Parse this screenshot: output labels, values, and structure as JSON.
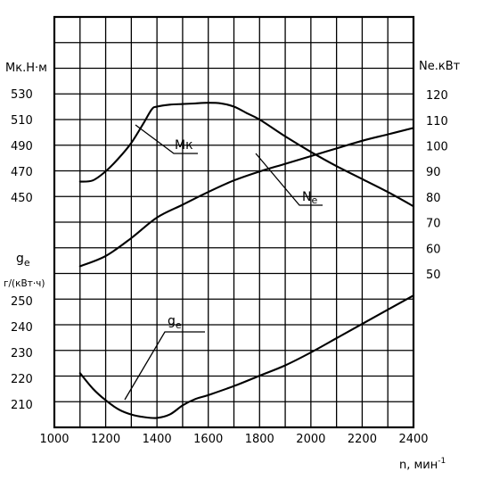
{
  "chart_data": {
    "type": "line",
    "x": {
      "label": "n, мин",
      "label_exp": "-1",
      "min": 1000,
      "max": 2400,
      "ticks": [
        1000,
        1200,
        1400,
        1600,
        1800,
        2000,
        2200,
        2400
      ]
    },
    "axes": {
      "mk": {
        "label": "Мк.Н·м",
        "ticks": [
          450,
          470,
          490,
          510,
          530
        ]
      },
      "ne": {
        "label": "Nе.кВт",
        "ticks": [
          50,
          60,
          70,
          80,
          90,
          100,
          110,
          120
        ]
      },
      "ge": {
        "label": "g",
        "label_sub": "е",
        "unit": "г/(кВт·ч)",
        "ticks": [
          210,
          220,
          230,
          240,
          250
        ]
      }
    },
    "series": [
      {
        "name": "Мк",
        "axis": "mk",
        "x": [
          1100,
          1150,
          1200,
          1250,
          1300,
          1350,
          1380,
          1400,
          1450,
          1500,
          1550,
          1600,
          1650,
          1700,
          1750,
          1800,
          1900,
          2000,
          2100,
          2200,
          2300,
          2400
        ],
        "values": [
          462,
          463,
          470,
          480,
          492,
          508,
          518,
          520,
          521.5,
          522,
          522.5,
          523,
          522.5,
          520,
          515,
          510,
          497,
          485,
          474,
          464,
          454,
          443
        ]
      },
      {
        "name": "Nе",
        "axis": "ne",
        "x": [
          1100,
          1200,
          1300,
          1400,
          1500,
          1600,
          1700,
          1800,
          1900,
          2000,
          2100,
          2200,
          2300,
          2400
        ],
        "values": [
          53,
          57,
          64,
          72,
          77,
          82,
          86.5,
          90,
          93,
          96,
          99,
          102,
          104.5,
          107
        ]
      },
      {
        "name": "g",
        "name_sub": "е",
        "axis": "ge",
        "x": [
          1100,
          1150,
          1200,
          1250,
          1300,
          1350,
          1400,
          1450,
          1500,
          1550,
          1600,
          1700,
          1800,
          1900,
          2000,
          2100,
          2200,
          2300,
          2400
        ],
        "values": [
          222,
          216,
          211.5,
          208,
          206,
          205,
          204.7,
          206,
          209.5,
          212,
          213.5,
          217,
          221,
          225,
          230,
          235.5,
          241,
          246.5,
          252
        ]
      }
    ],
    "annotations": [
      {
        "text": "Мк",
        "series": "Мк"
      },
      {
        "text": "N",
        "sub": "е",
        "series": "Nе"
      },
      {
        "text": "g",
        "sub": "е",
        "series": "gе"
      }
    ],
    "grid": true
  }
}
